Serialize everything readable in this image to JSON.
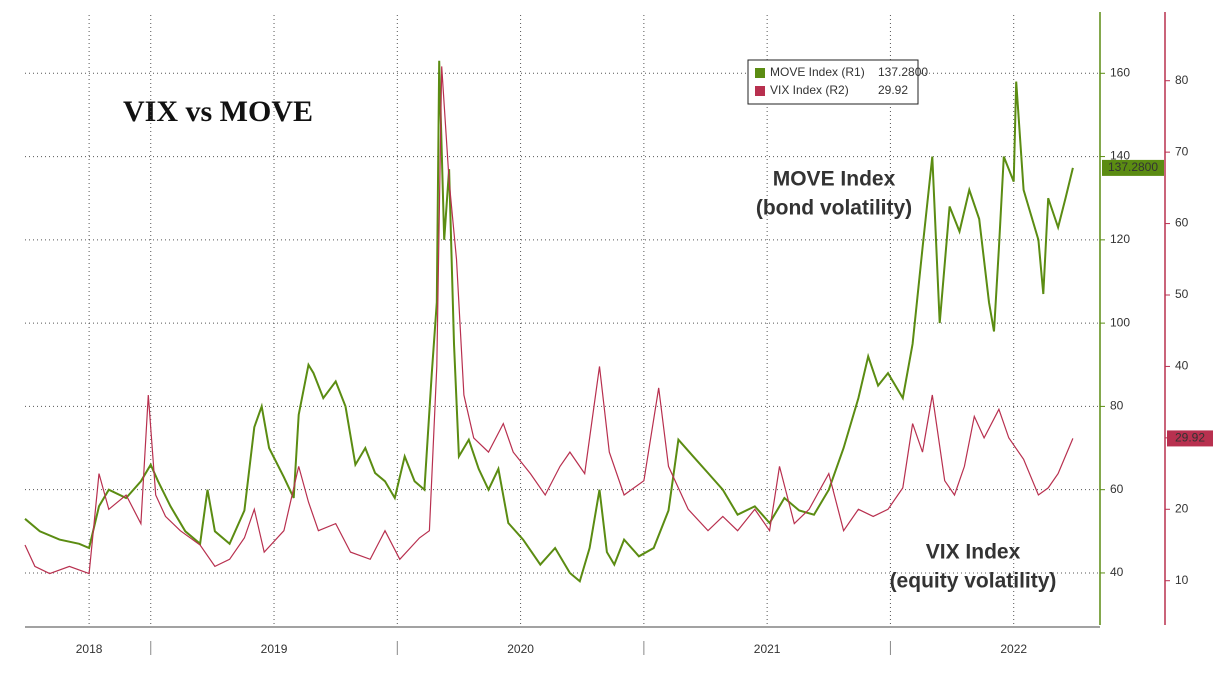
{
  "chart_data": {
    "type": "line",
    "title": "VIX vs MOVE",
    "xlim": [
      2018.49,
      2022.85
    ],
    "xticks": [
      {
        "value": 2018.75,
        "label": "2018"
      },
      {
        "value": 2019.5,
        "label": "2019"
      },
      {
        "value": 2020.5,
        "label": "2020"
      },
      {
        "value": 2021.5,
        "label": "2021"
      },
      {
        "value": 2022.5,
        "label": "2022"
      }
    ],
    "xminorticks": [
      2019,
      2020,
      2021,
      2022
    ],
    "ylim": [
      27.5,
      174
    ],
    "yticks": [
      40,
      60,
      80,
      100,
      120,
      140,
      160
    ],
    "y2lim": [
      3.8,
      89.2
    ],
    "y2ticks": [
      10,
      20,
      30,
      40,
      50,
      60,
      70,
      80
    ],
    "grid": true,
    "series": [
      {
        "name": "MOVE Index (R1)",
        "color": "#5b8c12",
        "last_label": "137.2800",
        "x": [
          2018.49,
          2018.55,
          2018.63,
          2018.71,
          2018.75,
          2018.79,
          2018.83,
          2018.9,
          2018.96,
          2019.0,
          2019.03,
          2019.08,
          2019.14,
          2019.2,
          2019.23,
          2019.26,
          2019.32,
          2019.38,
          2019.42,
          2019.45,
          2019.48,
          2019.54,
          2019.58,
          2019.6,
          2019.64,
          2019.66,
          2019.7,
          2019.75,
          2019.79,
          2019.83,
          2019.87,
          2019.91,
          2019.95,
          2019.99,
          2020.03,
          2020.07,
          2020.11,
          2020.14,
          2020.16,
          2020.17,
          2020.19,
          2020.21,
          2020.23,
          2020.25,
          2020.29,
          2020.33,
          2020.37,
          2020.41,
          2020.45,
          2020.51,
          2020.58,
          2020.64,
          2020.7,
          2020.74,
          2020.78,
          2020.82,
          2020.85,
          2020.88,
          2020.92,
          2020.98,
          2021.04,
          2021.1,
          2021.14,
          2021.2,
          2021.26,
          2021.32,
          2021.38,
          2021.45,
          2021.51,
          2021.57,
          2021.63,
          2021.69,
          2021.75,
          2021.81,
          2021.87,
          2021.91,
          2021.95,
          2021.99,
          2022.05,
          2022.09,
          2022.13,
          2022.17,
          2022.2,
          2022.24,
          2022.28,
          2022.32,
          2022.36,
          2022.4,
          2022.42,
          2022.44,
          2022.46,
          2022.5,
          2022.51,
          2022.54,
          2022.56,
          2022.6,
          2022.62,
          2022.64,
          2022.68,
          2022.71,
          2022.74
        ],
        "values": [
          53,
          50,
          48,
          47,
          46,
          56,
          60,
          58,
          62,
          66,
          62,
          56,
          50,
          47,
          60,
          50,
          47,
          55,
          75,
          80,
          70,
          63,
          58,
          78,
          90,
          88,
          82,
          86,
          80,
          66,
          70,
          64,
          62,
          58,
          68,
          62,
          60,
          88,
          105,
          163,
          120,
          137,
          95,
          68,
          72,
          65,
          60,
          65,
          52,
          48,
          42,
          46,
          40,
          38,
          46,
          60,
          45,
          42,
          48,
          44,
          46,
          55,
          72,
          68,
          64,
          60,
          54,
          56,
          52,
          58,
          55,
          54,
          60,
          70,
          82,
          92,
          85,
          88,
          82,
          95,
          118,
          140,
          100,
          128,
          122,
          132,
          125,
          105,
          98,
          118,
          140,
          134,
          158,
          132,
          128,
          120,
          107,
          130,
          123,
          130,
          137.28
        ]
      },
      {
        "name": "VIX Index (R2)",
        "color": "#b8304f",
        "axis": "y2",
        "last_label": "29.92",
        "x": [
          2018.49,
          2018.53,
          2018.59,
          2018.67,
          2018.75,
          2018.79,
          2018.83,
          2018.9,
          2018.96,
          2018.99,
          2019.02,
          2019.06,
          2019.12,
          2019.2,
          2019.26,
          2019.32,
          2019.38,
          2019.42,
          2019.46,
          2019.54,
          2019.6,
          2019.64,
          2019.68,
          2019.75,
          2019.81,
          2019.89,
          2019.95,
          2020.01,
          2020.09,
          2020.13,
          2020.16,
          2020.18,
          2020.21,
          2020.24,
          2020.27,
          2020.31,
          2020.37,
          2020.43,
          2020.47,
          2020.54,
          2020.6,
          2020.66,
          2020.7,
          2020.76,
          2020.82,
          2020.86,
          2020.92,
          2021.0,
          2021.06,
          2021.1,
          2021.18,
          2021.26,
          2021.32,
          2021.38,
          2021.45,
          2021.51,
          2021.55,
          2021.61,
          2021.67,
          2021.75,
          2021.81,
          2021.87,
          2021.93,
          2021.99,
          2022.05,
          2022.09,
          2022.13,
          2022.17,
          2022.22,
          2022.26,
          2022.3,
          2022.34,
          2022.38,
          2022.44,
          2022.48,
          2022.54,
          2022.6,
          2022.64,
          2022.68,
          2022.74
        ],
        "values": [
          15,
          12,
          11,
          12,
          11,
          25,
          20,
          22,
          18,
          36,
          22,
          19,
          17,
          15,
          12,
          13,
          16,
          20,
          14,
          17,
          26,
          21,
          17,
          18,
          14,
          13,
          17,
          13,
          16,
          17,
          40,
          82,
          66,
          55,
          36,
          30,
          28,
          32,
          28,
          25,
          22,
          26,
          28,
          25,
          40,
          28,
          22,
          24,
          37,
          26,
          20,
          17,
          19,
          17,
          20,
          17,
          26,
          18,
          20,
          25,
          17,
          20,
          19,
          20,
          23,
          32,
          28,
          36,
          24,
          22,
          26,
          33,
          30,
          34,
          30,
          27,
          22,
          23,
          25,
          29.92
        ]
      }
    ],
    "annotations": [
      {
        "lines": [
          "MOVE Index",
          "(bond volatility)"
        ],
        "color": "#5b8c12"
      },
      {
        "lines": [
          "VIX Index",
          "(equity volatility)"
        ],
        "color": "#b0607a"
      }
    ]
  }
}
